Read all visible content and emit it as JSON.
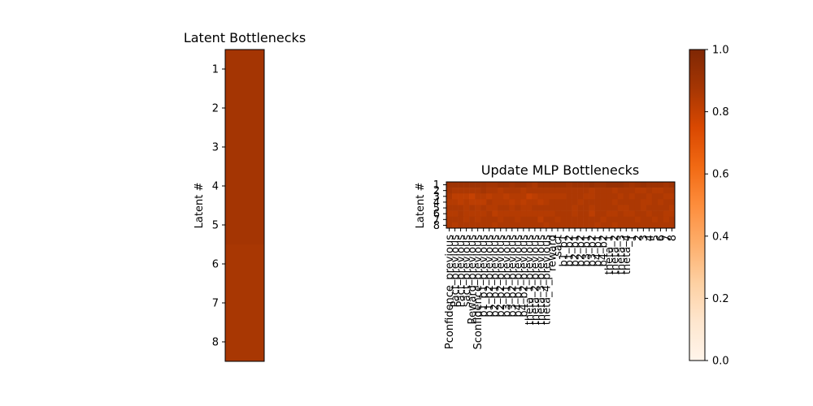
{
  "chart_data": [
    {
      "type": "heatmap",
      "title": "Latent Bottlenecks",
      "ylabel": "Latent #",
      "xlabel": "",
      "rows": [
        "1",
        "2",
        "3",
        "4",
        "5",
        "6",
        "7",
        "8"
      ],
      "columns": [],
      "values": [
        [
          0.88
        ],
        [
          0.88
        ],
        [
          0.88
        ],
        [
          0.88
        ],
        [
          0.88
        ],
        [
          0.87
        ],
        [
          0.87
        ],
        [
          0.87
        ]
      ]
    },
    {
      "type": "heatmap",
      "title": "Update MLP Bottlenecks",
      "ylabel": "Latent #",
      "xlabel": "",
      "rows": [
        "1",
        "2",
        "3",
        "4",
        "5",
        "6",
        "7",
        "8"
      ],
      "columns": [
        "Pconfidence_previous",
        "Pact_previous",
        "Pact_previous",
        "sact_previous",
        "Reward_previous",
        "Sconfidence_previous",
        "b1_b1_previous",
        "b1_b2_previous",
        "b2_b1_previous",
        "b2_b2_previous",
        "b3_b1_previous",
        "b3_b2_previous",
        "b4_b1_previous",
        "b4_b2_previous",
        "theta_1_previous",
        "theta_2_previous",
        "theta_3_previous",
        "theta_4_previous",
        "reward",
        "sact",
        "b1_b1",
        "b1_b2",
        "b2_b1",
        "b2_b2",
        "b3_b1",
        "b3_b2",
        "b4_b1",
        "b4_b2",
        "theta_1",
        "theta_2",
        "theta_3",
        "theta_4",
        "1",
        "2",
        "3",
        "4",
        "5",
        "6",
        "7",
        "8"
      ],
      "values": [
        [
          0.9,
          0.9,
          0.9,
          0.9,
          0.9,
          0.9,
          0.9,
          0.88,
          0.88,
          0.9,
          0.9,
          0.88,
          0.9,
          0.9,
          0.88,
          0.86,
          0.9,
          0.9,
          0.9,
          0.9,
          0.9,
          0.88,
          0.9,
          0.9,
          0.9,
          0.92,
          0.9,
          0.9,
          0.92,
          0.92,
          0.92,
          0.9,
          0.88,
          0.9,
          0.92,
          0.9,
          0.9,
          0.9,
          0.88,
          0.9
        ],
        [
          0.88,
          0.86,
          0.86,
          0.86,
          0.86,
          0.86,
          0.88,
          0.86,
          0.86,
          0.84,
          0.86,
          0.86,
          0.86,
          0.84,
          0.86,
          0.86,
          0.86,
          0.86,
          0.86,
          0.86,
          0.86,
          0.86,
          0.86,
          0.86,
          0.86,
          0.84,
          0.86,
          0.86,
          0.86,
          0.84,
          0.86,
          0.86,
          0.86,
          0.84,
          0.84,
          0.86,
          0.84,
          0.84,
          0.86,
          0.86
        ],
        [
          0.86,
          0.82,
          0.82,
          0.82,
          0.8,
          0.84,
          0.84,
          0.82,
          0.84,
          0.84,
          0.82,
          0.84,
          0.84,
          0.84,
          0.8,
          0.82,
          0.84,
          0.84,
          0.84,
          0.84,
          0.84,
          0.86,
          0.86,
          0.86,
          0.84,
          0.84,
          0.86,
          0.86,
          0.86,
          0.86,
          0.84,
          0.86,
          0.84,
          0.86,
          0.86,
          0.84,
          0.86,
          0.86,
          0.84,
          0.84
        ],
        [
          0.84,
          0.84,
          0.82,
          0.84,
          0.82,
          0.82,
          0.82,
          0.86,
          0.84,
          0.84,
          0.84,
          0.82,
          0.84,
          0.82,
          0.84,
          0.84,
          0.82,
          0.84,
          0.86,
          0.86,
          0.86,
          0.86,
          0.86,
          0.84,
          0.86,
          0.86,
          0.86,
          0.86,
          0.86,
          0.84,
          0.86,
          0.86,
          0.86,
          0.86,
          0.84,
          0.84,
          0.86,
          0.84,
          0.86,
          0.86
        ],
        [
          0.86,
          0.86,
          0.86,
          0.84,
          0.86,
          0.84,
          0.86,
          0.84,
          0.84,
          0.86,
          0.86,
          0.84,
          0.86,
          0.84,
          0.84,
          0.86,
          0.86,
          0.86,
          0.86,
          0.86,
          0.86,
          0.86,
          0.84,
          0.86,
          0.86,
          0.84,
          0.86,
          0.86,
          0.86,
          0.86,
          0.84,
          0.84,
          0.86,
          0.86,
          0.84,
          0.86,
          0.86,
          0.86,
          0.86,
          0.84
        ],
        [
          0.84,
          0.84,
          0.86,
          0.84,
          0.84,
          0.84,
          0.84,
          0.86,
          0.82,
          0.84,
          0.84,
          0.84,
          0.84,
          0.84,
          0.84,
          0.84,
          0.84,
          0.84,
          0.84,
          0.86,
          0.86,
          0.86,
          0.84,
          0.86,
          0.86,
          0.82,
          0.86,
          0.86,
          0.84,
          0.84,
          0.86,
          0.84,
          0.84,
          0.86,
          0.86,
          0.84,
          0.86,
          0.86,
          0.84,
          0.84
        ],
        [
          0.86,
          0.86,
          0.86,
          0.84,
          0.86,
          0.84,
          0.86,
          0.86,
          0.86,
          0.84,
          0.86,
          0.86,
          0.84,
          0.86,
          0.86,
          0.86,
          0.82,
          0.86,
          0.86,
          0.84,
          0.86,
          0.86,
          0.86,
          0.86,
          0.86,
          0.86,
          0.86,
          0.84,
          0.86,
          0.86,
          0.86,
          0.86,
          0.86,
          0.84,
          0.86,
          0.86,
          0.84,
          0.86,
          0.84,
          0.86
        ],
        [
          0.86,
          0.84,
          0.86,
          0.86,
          0.86,
          0.86,
          0.86,
          0.86,
          0.84,
          0.86,
          0.86,
          0.86,
          0.86,
          0.86,
          0.86,
          0.86,
          0.86,
          0.84,
          0.86,
          0.86,
          0.86,
          0.86,
          0.86,
          0.86,
          0.86,
          0.86,
          0.84,
          0.86,
          0.86,
          0.84,
          0.86,
          0.86,
          0.86,
          0.86,
          0.86,
          0.86,
          0.86,
          0.86,
          0.86,
          0.86
        ]
      ]
    },
    {
      "type": "colorbar",
      "colormap": "Oranges",
      "range": [
        0.0,
        1.0
      ],
      "ticks": [
        "0.0",
        "0.2",
        "0.4",
        "0.6",
        "0.8",
        "1.0"
      ]
    }
  ]
}
